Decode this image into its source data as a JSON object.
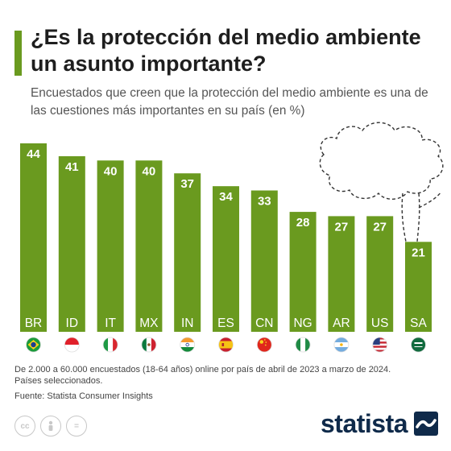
{
  "header": {
    "title": "¿Es la protección del medio ambiente un asunto importante?",
    "subtitle": "Encuestados que creen que la protección del medio ambiente es una de las cuestiones más importantes en su país (en %)"
  },
  "chart_data": {
    "type": "bar",
    "categories": [
      "BR",
      "ID",
      "IT",
      "MX",
      "IN",
      "ES",
      "CN",
      "NG",
      "AR",
      "US",
      "SA"
    ],
    "values": [
      44,
      41,
      40,
      40,
      37,
      34,
      33,
      28,
      27,
      27,
      21
    ],
    "ylim": [
      0,
      44
    ],
    "bar_color": "#6a9a1f",
    "grid": false,
    "legend": "none"
  },
  "footer": {
    "note_line1": "De 2.000 a 60.000 encuestados (18-64 años) online por país de abril de 2023 a marzo de 2024.",
    "note_line2": "Países seleccionados.",
    "source": "Fuente: Statista Consumer Insights",
    "licence_icons": [
      "cc-icon",
      "person-icon",
      "equals-icon"
    ],
    "cc_glyph": "cc",
    "equals_glyph": "="
  },
  "logo": {
    "text": "statista"
  },
  "colors": {
    "accent": "#6a9a1f",
    "brand": "#0f2a4a"
  }
}
